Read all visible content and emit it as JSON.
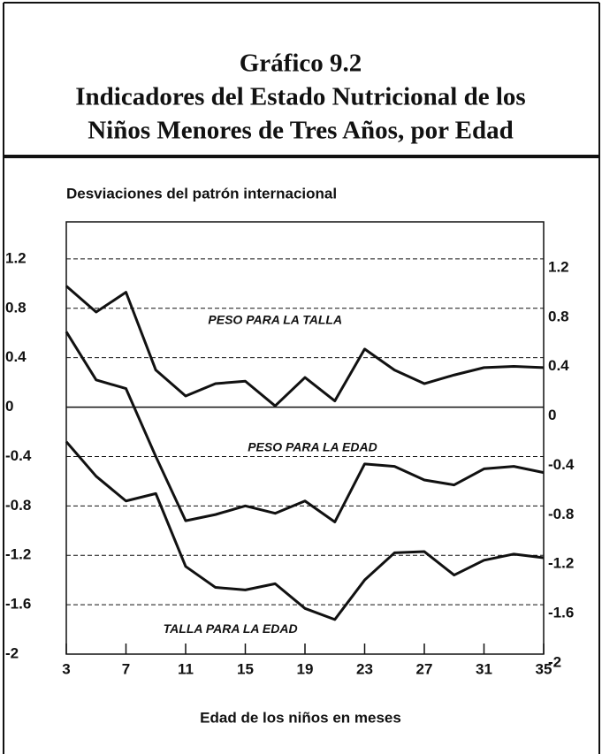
{
  "chart_data": {
    "type": "line",
    "title": [
      "Gráfico 9.2",
      "Indicadores del Estado Nutricional de los",
      "Niños Menores de Tres Años, por Edad"
    ],
    "y_label": "Desviaciones del patrón internacional",
    "x_label": "Edad de los niños en meses",
    "x": [
      3,
      5,
      7,
      9,
      11,
      13,
      15,
      17,
      19,
      21,
      23,
      25,
      27,
      29,
      31,
      33,
      35
    ],
    "series": [
      {
        "name": "PESO PARA LA TALLA",
        "color": "#111111",
        "values": [
          0.98,
          0.77,
          0.93,
          0.3,
          0.09,
          0.19,
          0.21,
          0.01,
          0.24,
          0.05,
          0.47,
          0.3,
          0.19,
          0.26,
          0.32,
          0.33,
          0.32
        ]
      },
      {
        "name": "PESO PARA LA EDAD",
        "color": "#111111",
        "values": [
          0.61,
          0.22,
          0.15,
          -0.4,
          -0.92,
          -0.87,
          -0.8,
          -0.86,
          -0.76,
          -0.93,
          -0.46,
          -0.48,
          -0.59,
          -0.63,
          -0.5,
          -0.48,
          -0.53
        ]
      },
      {
        "name": "TALLA PARA LA EDAD",
        "color": "#111111",
        "values": [
          -0.28,
          -0.56,
          -0.76,
          -0.7,
          -1.29,
          -1.46,
          -1.48,
          -1.43,
          -1.63,
          -1.72,
          -1.4,
          -1.18,
          -1.17,
          -1.36,
          -1.24,
          -1.19,
          -1.22
        ]
      }
    ],
    "xlim": [
      3,
      35
    ],
    "xticks": [
      3,
      7,
      11,
      15,
      19,
      23,
      27,
      31,
      35
    ],
    "ylim": [
      -2,
      1.5
    ],
    "yticks": [
      -2,
      -1.6,
      -1.2,
      -0.8,
      -0.4,
      0,
      0.4,
      0.8,
      1.2
    ],
    "grid": true
  }
}
